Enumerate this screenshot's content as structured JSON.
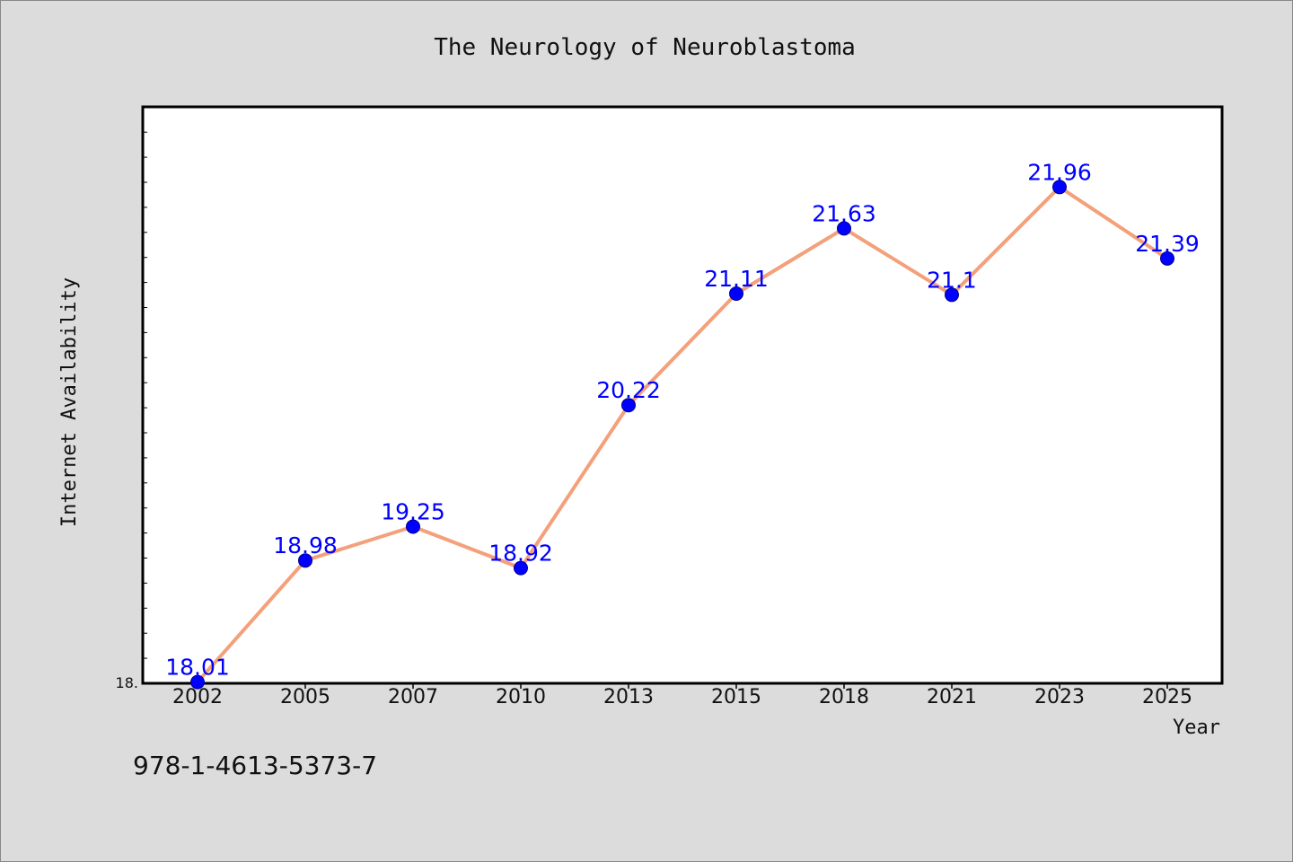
{
  "chart_data": {
    "type": "line",
    "title": "The Neurology of Neuroblastoma",
    "xlabel": "Year",
    "ylabel": "Internet Availability",
    "categories": [
      "2002",
      "2005",
      "2007",
      "2010",
      "2013",
      "2015",
      "2018",
      "2021",
      "2023",
      "2025"
    ],
    "series": [
      {
        "values": [
          18.01,
          18.98,
          19.25,
          18.92,
          20.22,
          21.11,
          21.63,
          21.1,
          21.96,
          21.39
        ],
        "labels": [
          "18.01",
          "18.98",
          "19.25",
          "18.92",
          "20.22",
          "21.11",
          "21.63",
          "21.1",
          "21.96",
          "21.39"
        ],
        "line_color": "#f4a07a",
        "marker_color": "#0000ff"
      }
    ],
    "ylim": [
      18.0,
      22.6
    ],
    "y_tick_labels": [
      "18."
    ],
    "grid": false,
    "plot_background": "#ffffff",
    "page_background": "#dcdcdc"
  },
  "annotation": {
    "isbn": "978-1-4613-5373-7"
  }
}
